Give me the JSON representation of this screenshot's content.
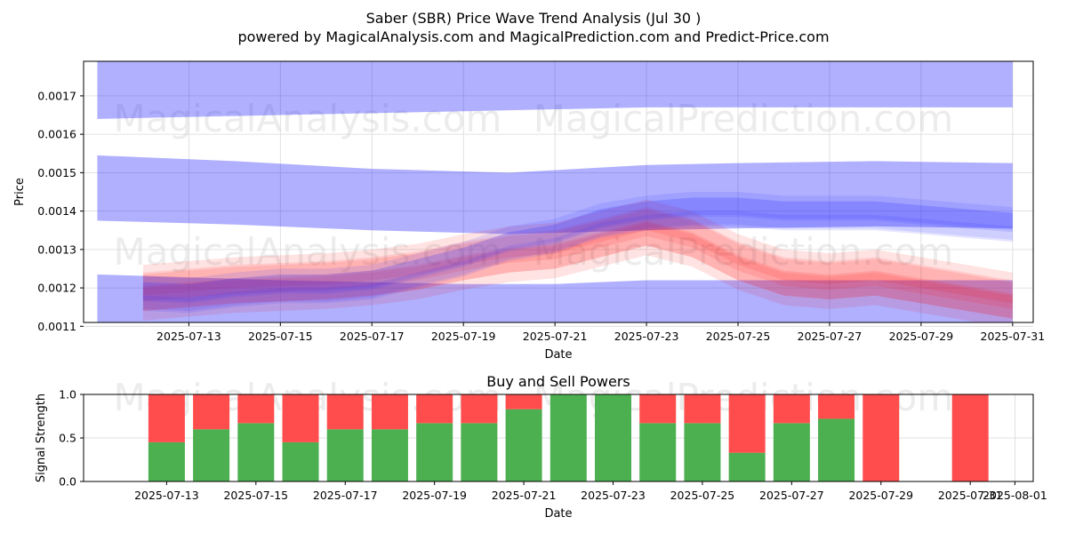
{
  "header": {
    "title": "Saber (SBR) Price Wave Trend Analysis (Jul 30 )",
    "subtitle": "powered by MagicalAnalysis.com and MagicalPrediction.com and Predict-Price.com"
  },
  "watermarks": [
    "MagicalAnalysis.com",
    "MagicalPrediction.com"
  ],
  "colors": {
    "band": "#0000ff",
    "wave_red": "#ff0000",
    "wave_blue": "#3333ff",
    "buy": "#4caf50",
    "sell": "#ff4d4d",
    "grid": "#d9d9d9"
  },
  "chart_data": [
    {
      "type": "area",
      "xlabel": "Date",
      "ylabel": "Price",
      "xlim": [
        "2025-07-11",
        "2025-07-31"
      ],
      "ylim": [
        0.00111,
        0.00179
      ],
      "grid": true,
      "x_ticks": [
        "2025-07-13",
        "2025-07-15",
        "2025-07-17",
        "2025-07-19",
        "2025-07-21",
        "2025-07-23",
        "2025-07-25",
        "2025-07-27",
        "2025-07-29",
        "2025-07-31"
      ],
      "y_ticks": [
        "0.0011",
        "0.0012",
        "0.0013",
        "0.0014",
        "0.0015",
        "0.0016",
        "0.0017"
      ],
      "bands": [
        {
          "dates": [
            "2025-07-11",
            "2025-07-15",
            "2025-07-19",
            "2025-07-23",
            "2025-07-28",
            "2025-07-31"
          ],
          "upper": [
            0.00179,
            0.00179,
            0.00179,
            0.00179,
            0.00179,
            0.00179
          ],
          "lower": [
            0.00164,
            0.00165,
            0.00166,
            0.00167,
            0.00167,
            0.00167
          ]
        },
        {
          "dates": [
            "2025-07-11",
            "2025-07-14",
            "2025-07-17",
            "2025-07-20",
            "2025-07-23",
            "2025-07-25",
            "2025-07-28",
            "2025-07-31"
          ],
          "upper": [
            0.001545,
            0.00153,
            0.00151,
            0.0015,
            0.00152,
            0.001525,
            0.00153,
            0.001525
          ],
          "lower": [
            0.001375,
            0.001365,
            0.00135,
            0.00134,
            0.00135,
            0.001355,
            0.00136,
            0.001355
          ]
        },
        {
          "dates": [
            "2025-07-11",
            "2025-07-15",
            "2025-07-19",
            "2025-07-21",
            "2025-07-23",
            "2025-07-27",
            "2025-07-31"
          ],
          "upper": [
            0.001235,
            0.00122,
            0.00121,
            0.00121,
            0.00122,
            0.00122,
            0.00122
          ],
          "lower": [
            0.00107,
            0.00106,
            0.00105,
            0.00106,
            0.00107,
            0.00108,
            0.00108
          ]
        }
      ],
      "waves": {
        "dates": [
          "2025-07-12",
          "2025-07-13",
          "2025-07-14",
          "2025-07-15",
          "2025-07-16",
          "2025-07-17",
          "2025-07-18",
          "2025-07-19",
          "2025-07-20",
          "2025-07-21",
          "2025-07-22",
          "2025-07-23",
          "2025-07-24",
          "2025-07-25",
          "2025-07-26",
          "2025-07-27",
          "2025-07-28",
          "2025-07-29",
          "2025-07-30",
          "2025-07-31"
        ],
        "red_center": [
          0.00119,
          0.0012,
          0.00121,
          0.001215,
          0.00122,
          0.00123,
          0.001245,
          0.00127,
          0.00129,
          0.0013,
          0.00133,
          0.00136,
          0.00133,
          0.00127,
          0.00123,
          0.00122,
          0.00123,
          0.00121,
          0.00119,
          0.00117
        ],
        "blue_center": [
          0.00118,
          0.001175,
          0.00119,
          0.0012,
          0.0012,
          0.00121,
          0.00124,
          0.00127,
          0.00131,
          0.00133,
          0.00137,
          0.00139,
          0.0014,
          0.0014,
          0.00139,
          0.00139,
          0.00139,
          0.00138,
          0.00137,
          0.00136
        ]
      }
    },
    {
      "type": "bar",
      "title": "Buy and Sell Powers",
      "xlabel": "Date",
      "ylabel": "Signal Strength",
      "ylim": [
        0,
        1
      ],
      "y_ticks": [
        "0.0",
        "0.5",
        "1.0"
      ],
      "x_ticks": [
        "2025-07-13",
        "2025-07-15",
        "2025-07-17",
        "2025-07-19",
        "2025-07-21",
        "2025-07-23",
        "2025-07-25",
        "2025-07-27",
        "2025-07-29",
        "2025-07-31",
        "2025-08-01"
      ],
      "categories": [
        "2025-07-13",
        "2025-07-14",
        "2025-07-15",
        "2025-07-16",
        "2025-07-17",
        "2025-07-18",
        "2025-07-19",
        "2025-07-20",
        "2025-07-21",
        "2025-07-22",
        "2025-07-23",
        "2025-07-24",
        "2025-07-25",
        "2025-07-26",
        "2025-07-27",
        "2025-07-28",
        "2025-07-29",
        "2025-07-31"
      ],
      "series": [
        {
          "name": "Buy",
          "values": [
            0.45,
            0.6,
            0.67,
            0.45,
            0.6,
            0.6,
            0.67,
            0.67,
            0.83,
            1.0,
            1.0,
            0.67,
            0.67,
            0.33,
            0.67,
            0.72,
            0.0,
            0.0
          ]
        },
        {
          "name": "Sell",
          "values": [
            0.55,
            0.4,
            0.33,
            0.55,
            0.4,
            0.4,
            0.33,
            0.33,
            0.17,
            0.0,
            0.0,
            0.33,
            0.33,
            0.67,
            0.33,
            0.28,
            1.0,
            1.0
          ]
        }
      ]
    }
  ]
}
